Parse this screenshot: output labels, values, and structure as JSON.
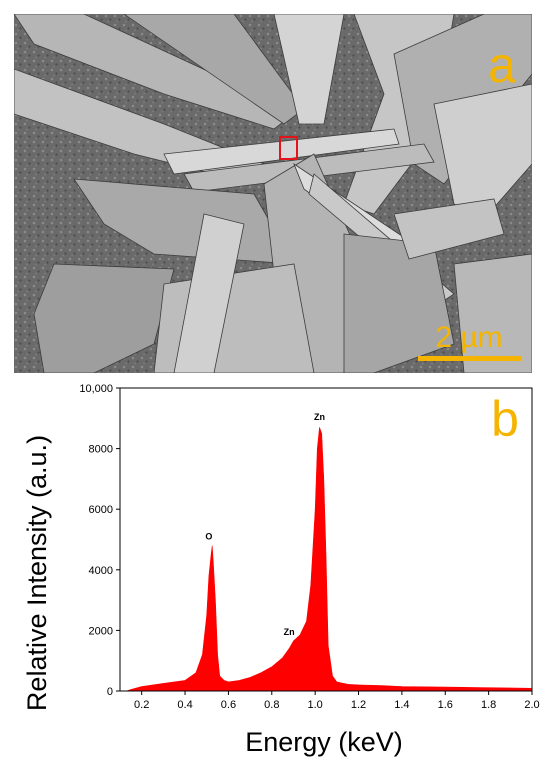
{
  "panel_a": {
    "label": "a",
    "scale_bar_label": "2 µm",
    "colors": {
      "label": "#f5b400",
      "roi_box": "#e0161a",
      "scale_bar": "#f5b400"
    }
  },
  "panel_b": {
    "label": "b",
    "colors": {
      "label": "#f5b400",
      "spectrum": "#ff0000"
    }
  },
  "chart_data": {
    "type": "area",
    "title": "",
    "xlabel": "Energy (keV)",
    "ylabel": "Relative Intensity (a.u.)",
    "xlim": [
      0.1,
      2.0
    ],
    "ylim": [
      0,
      10000
    ],
    "xticks": [
      0.2,
      0.4,
      0.6,
      0.8,
      1.0,
      1.2,
      1.4,
      1.6,
      1.8,
      2.0
    ],
    "xtick_labels": [
      "0.2",
      "0.4",
      "0.6",
      "0.8",
      "1.0",
      "1.2",
      "1.4",
      "1.6",
      "1.8",
      "2.0"
    ],
    "yticks": [
      0,
      2000,
      4000,
      6000,
      8000,
      10000
    ],
    "ytick_labels": [
      "0",
      "2000",
      "4000",
      "6000",
      "8000",
      "10,000"
    ],
    "grid": false,
    "series": [
      {
        "color": "#ff0000",
        "x": [
          0.13,
          0.15,
          0.2,
          0.3,
          0.4,
          0.45,
          0.48,
          0.5,
          0.51,
          0.52,
          0.525,
          0.53,
          0.54,
          0.55,
          0.56,
          0.58,
          0.6,
          0.65,
          0.7,
          0.75,
          0.8,
          0.85,
          0.88,
          0.9,
          0.93,
          0.96,
          0.98,
          1.0,
          1.01,
          1.02,
          1.03,
          1.04,
          1.05,
          1.06,
          1.08,
          1.1,
          1.15,
          1.2,
          1.3,
          1.4,
          1.6,
          1.8,
          2.0
        ],
        "values": [
          0,
          50,
          150,
          250,
          350,
          600,
          1200,
          2500,
          3800,
          4500,
          4800,
          4300,
          3000,
          1200,
          500,
          350,
          300,
          350,
          450,
          600,
          800,
          1100,
          1400,
          1650,
          1850,
          2300,
          3500,
          6000,
          8000,
          8700,
          8500,
          7000,
          4500,
          1500,
          500,
          300,
          220,
          200,
          180,
          150,
          130,
          110,
          90
        ]
      }
    ],
    "peak_labels": [
      {
        "text": "O",
        "x": 0.51,
        "y": 5000
      },
      {
        "text": "Zn",
        "x": 0.88,
        "y": 1850
      },
      {
        "text": "Zn",
        "x": 1.02,
        "y": 8950
      }
    ]
  }
}
